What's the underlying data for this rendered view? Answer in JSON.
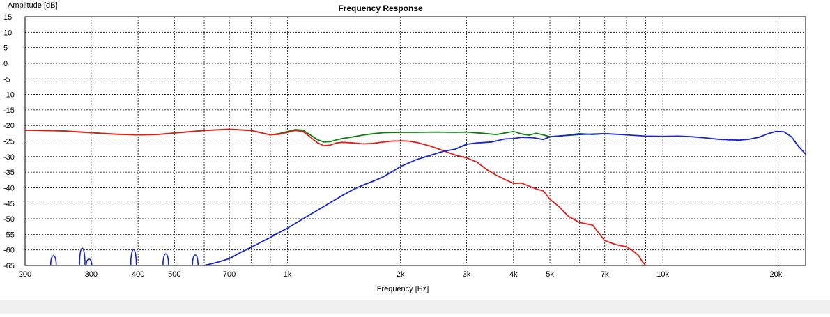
{
  "window": {
    "background": "#f0f0f0"
  },
  "chart_data": {
    "type": "line",
    "title": "Frequency Response",
    "xlabel": "Frequency [Hz]",
    "ylabel": "Amplitude [dB]",
    "xscale": "log",
    "xlim": [
      200,
      24000
    ],
    "ylim": [
      -65,
      15
    ],
    "grid": true,
    "x_tick_values": [
      200,
      300,
      400,
      500,
      700,
      1000,
      2000,
      3000,
      4000,
      5000,
      7000,
      10000,
      20000
    ],
    "x_tick_labels": [
      "200",
      "300",
      "400",
      "500",
      "700",
      "1k",
      "2k",
      "3k",
      "4k",
      "5k",
      "7k",
      "10k",
      "20k"
    ],
    "x_minor_gridlines": [
      600,
      800,
      900,
      6000,
      8000,
      9000
    ],
    "y_tick_values": [
      15,
      10,
      5,
      0,
      -5,
      -10,
      -15,
      -20,
      -25,
      -30,
      -35,
      -40,
      -45,
      -50,
      -55,
      -60,
      -65
    ],
    "y_tick_labels": [
      "15",
      "10",
      "5",
      "0",
      "-5",
      "-10",
      "-15",
      "-20",
      "-25",
      "-30",
      "-35",
      "-40",
      "-45",
      "-50",
      "-55",
      "-60",
      "-65"
    ],
    "colors": {
      "green": "#107c10",
      "red": "#e0201a",
      "blue": "#1626c8",
      "grid": "#000000",
      "axis": "#000000"
    },
    "series": [
      {
        "color": "green",
        "x": [
          200,
          250,
          300,
          350,
          400,
          450,
          500,
          600,
          700,
          800,
          900,
          950,
          1000,
          1050,
          1100,
          1150,
          1200,
          1250,
          1300,
          1350,
          1400,
          1500,
          1600,
          1700,
          1800,
          2000,
          2200,
          2500,
          2800,
          3000,
          3300,
          3600,
          3800,
          4000,
          4200,
          4400,
          4600,
          4800,
          5000,
          5500,
          6000,
          6500,
          7000
        ],
        "y": [
          -21.5,
          -21.7,
          -22.3,
          -22.8,
          -23.0,
          -22.9,
          -22.4,
          -21.6,
          -21.2,
          -21.6,
          -23.0,
          -22.6,
          -21.9,
          -21.3,
          -21.5,
          -23.0,
          -24.5,
          -25.3,
          -25.2,
          -24.6,
          -24.2,
          -23.6,
          -23.0,
          -22.6,
          -22.3,
          -22.2,
          -22.2,
          -22.1,
          -22.2,
          -22.1,
          -22.5,
          -22.9,
          -22.4,
          -21.9,
          -22.7,
          -23.1,
          -22.5,
          -23.0,
          -23.6,
          -23.2,
          -22.6,
          -22.9,
          -22.6
        ]
      },
      {
        "color": "red",
        "x": [
          200,
          250,
          300,
          350,
          400,
          450,
          500,
          600,
          700,
          800,
          900,
          950,
          1000,
          1050,
          1100,
          1150,
          1200,
          1250,
          1300,
          1350,
          1400,
          1500,
          1600,
          1700,
          1800,
          1900,
          2000,
          2100,
          2200,
          2400,
          2600,
          2800,
          3000,
          3200,
          3400,
          3600,
          3800,
          4000,
          4200,
          4400,
          4600,
          4800,
          5000,
          5300,
          5600,
          6000,
          6500,
          7000,
          7500,
          8000,
          8300,
          8600,
          8800,
          9000
        ],
        "y": [
          -21.5,
          -21.7,
          -22.3,
          -22.8,
          -23.0,
          -22.9,
          -22.4,
          -21.6,
          -21.2,
          -21.6,
          -23.0,
          -22.8,
          -22.2,
          -21.6,
          -21.9,
          -23.7,
          -25.5,
          -26.5,
          -26.3,
          -25.6,
          -25.4,
          -25.6,
          -25.9,
          -25.7,
          -25.3,
          -25.0,
          -24.9,
          -25.0,
          -25.4,
          -26.6,
          -28.1,
          -29.5,
          -30.4,
          -31.8,
          -34.2,
          -36.0,
          -37.4,
          -38.6,
          -38.5,
          -39.5,
          -40.4,
          -41.0,
          -43.7,
          -46.2,
          -49.2,
          -51.2,
          -52.0,
          -57.0,
          -58.3,
          -59.0,
          -60.2,
          -61.7,
          -63.6,
          -65.0
        ]
      },
      {
        "color": "blue",
        "x": [
          600,
          650,
          700,
          750,
          800,
          850,
          900,
          950,
          1000,
          1100,
          1200,
          1300,
          1400,
          1500,
          1600,
          1700,
          1800,
          2000,
          2200,
          2400,
          2600,
          2800,
          3000,
          3200,
          3500,
          3800,
          4000,
          4200,
          4500,
          4800,
          5000,
          5500,
          6000,
          7000,
          8000,
          9000,
          10000,
          11000,
          12000,
          13000,
          14000,
          15000,
          16000,
          17000,
          18000,
          19000,
          20000,
          21000,
          22000,
          23000,
          24000
        ],
        "y": [
          -65.0,
          -64.0,
          -62.8,
          -60.8,
          -59.2,
          -57.5,
          -56.0,
          -54.4,
          -53.0,
          -50.0,
          -47.3,
          -44.8,
          -42.5,
          -40.5,
          -39.0,
          -37.8,
          -36.5,
          -33.2,
          -31.0,
          -29.6,
          -28.3,
          -27.6,
          -26.0,
          -25.6,
          -25.3,
          -24.3,
          -24.2,
          -23.8,
          -23.9,
          -24.5,
          -23.6,
          -23.2,
          -22.9,
          -22.6,
          -23.0,
          -23.4,
          -23.5,
          -23.4,
          -23.6,
          -24.0,
          -24.4,
          -24.6,
          -24.7,
          -24.4,
          -23.8,
          -22.7,
          -21.9,
          -22.0,
          -23.6,
          -26.8,
          -29.2
        ]
      },
      {
        "color": "blue",
        "type": "peaks",
        "x": [
          238,
          284,
          296,
          389,
          474,
          568
        ],
        "y": [
          -60.8,
          -57.6,
          -62.3,
          -58.2,
          -60.0,
          -60.5
        ]
      }
    ]
  }
}
